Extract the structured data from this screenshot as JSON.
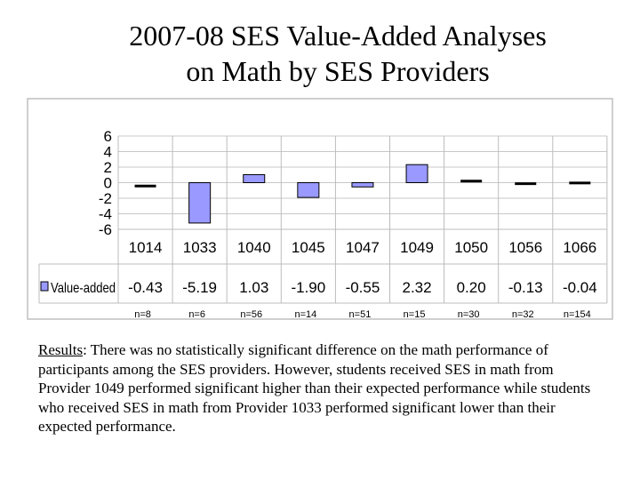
{
  "title": {
    "line1": "2007-08 SES Value-Added Analyses",
    "line2": "on Math by SES Providers"
  },
  "chart_data": {
    "type": "bar",
    "categories": [
      "1014",
      "1033",
      "1040",
      "1045",
      "1047",
      "1049",
      "1050",
      "1056",
      "1066"
    ],
    "series": [
      {
        "name": "Value-added",
        "values": [
          -0.43,
          -5.19,
          1.03,
          -1.9,
          -0.55,
          2.32,
          0.2,
          -0.13,
          -0.04
        ]
      }
    ],
    "value_labels": [
      "-0.43",
      "-5.19",
      "1.03",
      "-1.90",
      "-0.55",
      "2.32",
      "0.20",
      "-0.13",
      "-0.04"
    ],
    "n_labels": [
      "n=8",
      "n=6",
      "n=56",
      "n=14",
      "n=51",
      "n=15",
      "n=30",
      "n=32",
      "n=154"
    ],
    "yticks": [
      "6",
      "4",
      "2",
      "0",
      "-2",
      "-4",
      "-6"
    ],
    "ylim": [
      -6,
      6
    ],
    "grid": true,
    "legend": "data-table-left",
    "bar_color": "#9999ff"
  },
  "results": {
    "lead": "Results",
    "text": ": There was no statistically significant difference on the math performance of participants among the SES providers. However, students received SES in math from Provider 1049 performed significant higher than their expected performance while students who received SES in math from Provider 1033 performed significant lower than their expected performance."
  }
}
